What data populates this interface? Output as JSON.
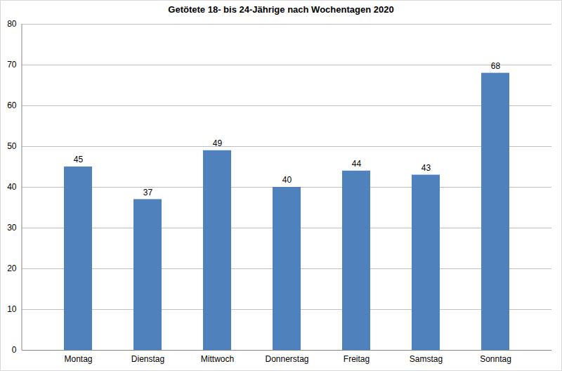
{
  "chart_data": {
    "type": "bar",
    "title": "Getötete 18- bis 24-Jährige nach Wochentagen 2020",
    "categories": [
      "Montag",
      "Dienstag",
      "Mittwoch",
      "Donnerstag",
      "Freitag",
      "Samstag",
      "Sonntag"
    ],
    "values": [
      45,
      37,
      49,
      40,
      44,
      43,
      68
    ],
    "color": "#4f81bd",
    "ylim": [
      0,
      80
    ],
    "yticks": [
      0,
      10,
      20,
      30,
      40,
      50,
      60,
      70,
      80
    ],
    "grid": true,
    "data_labels": true
  }
}
